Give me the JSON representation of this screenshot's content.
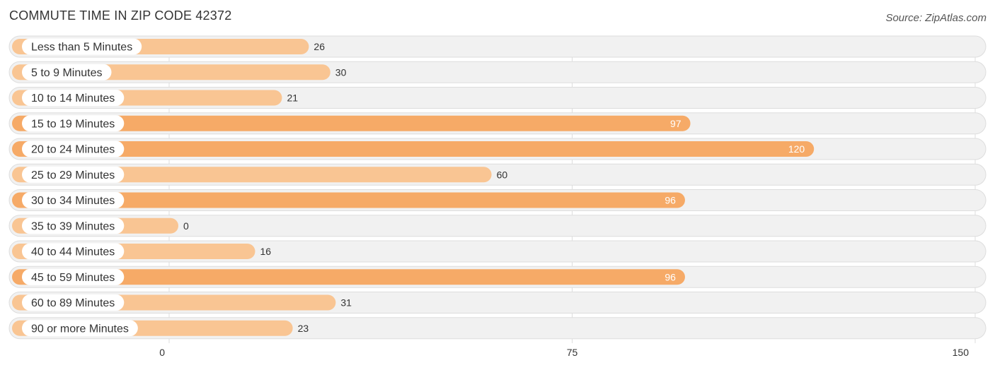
{
  "chart_data": {
    "type": "bar",
    "orientation": "horizontal",
    "title": "COMMUTE TIME IN ZIP CODE 42372",
    "source": "Source: ZipAtlas.com",
    "categories": [
      "Less than 5 Minutes",
      "5 to 9 Minutes",
      "10 to 14 Minutes",
      "15 to 19 Minutes",
      "20 to 24 Minutes",
      "25 to 29 Minutes",
      "30 to 34 Minutes",
      "35 to 39 Minutes",
      "40 to 44 Minutes",
      "45 to 59 Minutes",
      "60 to 89 Minutes",
      "90 or more Minutes"
    ],
    "values": [
      26,
      30,
      21,
      97,
      120,
      60,
      96,
      0,
      16,
      96,
      31,
      23
    ],
    "xlim": [
      0,
      150
    ],
    "xticks": [
      0,
      75,
      150
    ],
    "xlabel": "",
    "ylabel": "",
    "grid": true,
    "colors": {
      "bar_light": "#f9c593",
      "bar_strong": "#f6aa67",
      "track": "#f1f1f1",
      "track_border": "#dddddd",
      "label_bg": "#ffffff",
      "text": "#333333",
      "value_inside": "#ffffff"
    }
  }
}
